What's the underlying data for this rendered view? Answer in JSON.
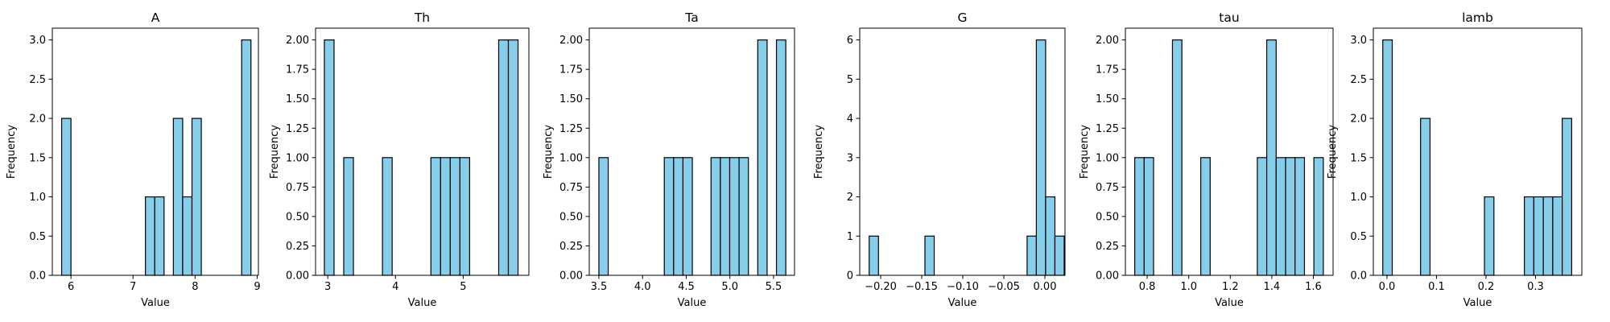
{
  "colors": {
    "bar_fill": "#87CEEB",
    "bar_edge": "#000000",
    "axes": "#000000",
    "background": "#ffffff"
  },
  "chart_data": [
    {
      "type": "bar",
      "title": "A",
      "xlabel": "Value",
      "ylabel": "Frequency",
      "xlim": [
        5.7,
        9.02
      ],
      "ylim": [
        0,
        3.15
      ],
      "xticks": [
        6,
        7,
        8,
        9
      ],
      "xtick_labels": [
        "6",
        "7",
        "8",
        "9"
      ],
      "yticks": [
        0,
        0.5,
        1.0,
        1.5,
        2.0,
        2.5,
        3.0
      ],
      "ytick_labels": [
        "0.0",
        "0.5",
        "1.0",
        "1.5",
        "2.0",
        "2.5",
        "3.0"
      ],
      "bin_width": 0.15,
      "bars": [
        {
          "x0": 5.85,
          "x1": 6.0,
          "count": 2
        },
        {
          "x0": 7.2,
          "x1": 7.35,
          "count": 1
        },
        {
          "x0": 7.35,
          "x1": 7.5,
          "count": 1
        },
        {
          "x0": 7.65,
          "x1": 7.8,
          "count": 2
        },
        {
          "x0": 7.8,
          "x1": 7.95,
          "count": 1
        },
        {
          "x0": 7.95,
          "x1": 8.1,
          "count": 2
        },
        {
          "x0": 8.75,
          "x1": 8.9,
          "count": 3
        }
      ]
    },
    {
      "type": "bar",
      "title": "Th",
      "xlabel": "Value",
      "ylabel": "Frequency",
      "xlim": [
        2.82,
        5.97
      ],
      "ylim": [
        0,
        2.1
      ],
      "xticks": [
        3,
        4,
        5
      ],
      "xtick_labels": [
        "3",
        "4",
        "5"
      ],
      "yticks": [
        0,
        0.25,
        0.5,
        0.75,
        1.0,
        1.25,
        1.5,
        1.75,
        2.0
      ],
      "ytick_labels": [
        "0.00",
        "0.25",
        "0.50",
        "0.75",
        "1.00",
        "1.25",
        "1.50",
        "1.75",
        "2.00"
      ],
      "bin_width": 0.143,
      "bars": [
        {
          "x0": 2.95,
          "x1": 3.093,
          "count": 2
        },
        {
          "x0": 3.236,
          "x1": 3.379,
          "count": 1
        },
        {
          "x0": 3.808,
          "x1": 3.951,
          "count": 1
        },
        {
          "x0": 4.523,
          "x1": 4.666,
          "count": 1
        },
        {
          "x0": 4.666,
          "x1": 4.809,
          "count": 1
        },
        {
          "x0": 4.809,
          "x1": 4.952,
          "count": 1
        },
        {
          "x0": 4.952,
          "x1": 5.095,
          "count": 1
        },
        {
          "x0": 5.524,
          "x1": 5.667,
          "count": 2
        },
        {
          "x0": 5.667,
          "x1": 5.81,
          "count": 2
        }
      ]
    },
    {
      "type": "bar",
      "title": "Ta",
      "xlabel": "Value",
      "ylabel": "Frequency",
      "xlim": [
        3.39,
        5.74
      ],
      "ylim": [
        0,
        2.1
      ],
      "xticks": [
        3.5,
        4.0,
        4.5,
        5.0,
        5.5
      ],
      "xtick_labels": [
        "3.5",
        "4.0",
        "4.5",
        "5.0",
        "5.5"
      ],
      "yticks": [
        0,
        0.25,
        0.5,
        0.75,
        1.0,
        1.25,
        1.5,
        1.75,
        2.0
      ],
      "ytick_labels": [
        "0.00",
        "0.25",
        "0.50",
        "0.75",
        "1.00",
        "1.25",
        "1.50",
        "1.75",
        "2.00"
      ],
      "bin_width": 0.107,
      "bars": [
        {
          "x0": 3.5,
          "x1": 3.607,
          "count": 1
        },
        {
          "x0": 4.249,
          "x1": 4.356,
          "count": 1
        },
        {
          "x0": 4.356,
          "x1": 4.463,
          "count": 1
        },
        {
          "x0": 4.463,
          "x1": 4.57,
          "count": 1
        },
        {
          "x0": 4.784,
          "x1": 4.891,
          "count": 1
        },
        {
          "x0": 4.891,
          "x1": 4.998,
          "count": 1
        },
        {
          "x0": 4.998,
          "x1": 5.105,
          "count": 1
        },
        {
          "x0": 5.105,
          "x1": 5.212,
          "count": 1
        },
        {
          "x0": 5.319,
          "x1": 5.426,
          "count": 2
        },
        {
          "x0": 5.533,
          "x1": 5.64,
          "count": 2
        }
      ]
    },
    {
      "type": "bar",
      "title": "G",
      "xlabel": "Value",
      "ylabel": "Frequency",
      "xlim": [
        -0.2255,
        0.0245
      ],
      "ylim": [
        0,
        6.3
      ],
      "xticks": [
        -0.2,
        -0.15,
        -0.1,
        -0.05,
        0.0
      ],
      "xtick_labels": [
        "−0.20",
        "−0.15",
        "−0.10",
        "−0.05",
        "0.00"
      ],
      "yticks": [
        0,
        1,
        2,
        3,
        4,
        5,
        6
      ],
      "ytick_labels": [
        "0",
        "1",
        "2",
        "3",
        "4",
        "5",
        "6"
      ],
      "bin_width": 0.0113,
      "bars": [
        {
          "x0": -0.214,
          "x1": -0.2027,
          "count": 1
        },
        {
          "x0": -0.1461,
          "x1": -0.1348,
          "count": 1
        },
        {
          "x0": -0.0217,
          "x1": -0.0104,
          "count": 1
        },
        {
          "x0": -0.0104,
          "x1": 0.0009,
          "count": 6
        },
        {
          "x0": 0.0009,
          "x1": 0.0122,
          "count": 2
        },
        {
          "x0": 0.0122,
          "x1": 0.0235,
          "count": 1
        }
      ]
    },
    {
      "type": "bar",
      "title": "tau",
      "xlabel": "Value",
      "ylabel": "Frequency",
      "xlim": [
        0.695,
        1.695
      ],
      "ylim": [
        0,
        2.1
      ],
      "xticks": [
        0.8,
        1.0,
        1.2,
        1.4,
        1.6
      ],
      "xtick_labels": [
        "0.8",
        "1.0",
        "1.2",
        "1.4",
        "1.6"
      ],
      "yticks": [
        0,
        0.25,
        0.5,
        0.75,
        1.0,
        1.25,
        1.5,
        1.75,
        2.0
      ],
      "ytick_labels": [
        "0.00",
        "0.25",
        "0.50",
        "0.75",
        "1.00",
        "1.25",
        "1.50",
        "1.75",
        "2.00"
      ],
      "bin_width": 0.0454,
      "bars": [
        {
          "x0": 0.74,
          "x1": 0.7854,
          "count": 1
        },
        {
          "x0": 0.7854,
          "x1": 0.8308,
          "count": 1
        },
        {
          "x0": 0.9216,
          "x1": 0.967,
          "count": 2
        },
        {
          "x0": 1.0578,
          "x1": 1.1032,
          "count": 1
        },
        {
          "x0": 1.3302,
          "x1": 1.3756,
          "count": 1
        },
        {
          "x0": 1.3756,
          "x1": 1.421,
          "count": 2
        },
        {
          "x0": 1.421,
          "x1": 1.4664,
          "count": 1
        },
        {
          "x0": 1.4664,
          "x1": 1.5118,
          "count": 1
        },
        {
          "x0": 1.5118,
          "x1": 1.5572,
          "count": 1
        },
        {
          "x0": 1.6026,
          "x1": 1.648,
          "count": 1
        }
      ]
    },
    {
      "type": "bar",
      "title": "lamb",
      "xlabel": "Value",
      "ylabel": "Frequency",
      "xlim": [
        -0.0275,
        0.3935
      ],
      "ylim": [
        0,
        3.15
      ],
      "xticks": [
        0.0,
        0.1,
        0.2,
        0.3
      ],
      "xtick_labels": [
        "0.0",
        "0.1",
        "0.2",
        "0.3"
      ],
      "yticks": [
        0,
        0.5,
        1.0,
        1.5,
        2.0,
        2.5,
        3.0
      ],
      "ytick_labels": [
        "0.0",
        "0.5",
        "1.0",
        "1.5",
        "2.0",
        "2.5",
        "3.0"
      ],
      "bin_width": 0.0191,
      "bars": [
        {
          "x0": -0.0084,
          "x1": 0.0107,
          "count": 3
        },
        {
          "x0": 0.0679,
          "x1": 0.087,
          "count": 2
        },
        {
          "x0": 0.1969,
          "x1": 0.216,
          "count": 1
        },
        {
          "x0": 0.2775,
          "x1": 0.2966,
          "count": 1
        },
        {
          "x0": 0.2966,
          "x1": 0.3157,
          "count": 1
        },
        {
          "x0": 0.3157,
          "x1": 0.3348,
          "count": 1
        },
        {
          "x0": 0.3348,
          "x1": 0.3539,
          "count": 1
        },
        {
          "x0": 0.3539,
          "x1": 0.373,
          "count": 2
        }
      ]
    }
  ]
}
